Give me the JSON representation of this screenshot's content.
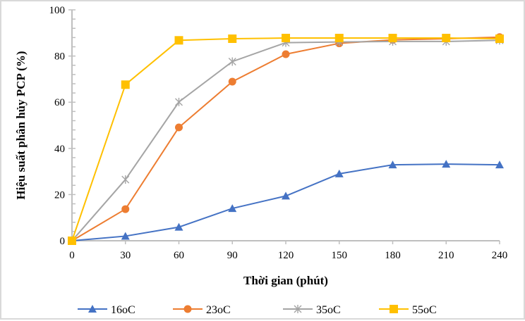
{
  "chart_data": {
    "type": "line",
    "title": "",
    "xlabel": "Thời gian (phút)",
    "ylabel": "Hiệu suất phân hủy PCP (%)",
    "x": [
      0,
      30,
      60,
      90,
      120,
      150,
      180,
      210,
      240
    ],
    "xticks": [
      "0",
      "30",
      "60",
      "90",
      "120",
      "150",
      "180",
      "210",
      "240"
    ],
    "yticks": [
      "0",
      "20",
      "40",
      "60",
      "80",
      "100"
    ],
    "xlim": [
      0,
      240
    ],
    "ylim": [
      0,
      100
    ],
    "grid": false,
    "legend_position": "bottom",
    "series": [
      {
        "name": "16oC",
        "color": "#4472c4",
        "marker": "triangle",
        "values": [
          0,
          2,
          5.9,
          14,
          19.4,
          29,
          32.9,
          33.2,
          32.9
        ]
      },
      {
        "name": "23oC",
        "color": "#ed7d31",
        "marker": "circle",
        "values": [
          0,
          13.7,
          49.1,
          68.9,
          80.8,
          85.5,
          87,
          87.5,
          88.2
        ]
      },
      {
        "name": "35oC",
        "color": "#a5a5a5",
        "marker": "star",
        "values": [
          0,
          26.5,
          60.1,
          77.6,
          85.8,
          86.1,
          86.3,
          86.3,
          86.8
        ]
      },
      {
        "name": "55oC",
        "color": "#ffc000",
        "marker": "square",
        "values": [
          0,
          67.6,
          86.8,
          87.5,
          87.8,
          87.8,
          87.8,
          87.8,
          87.5
        ]
      }
    ]
  }
}
